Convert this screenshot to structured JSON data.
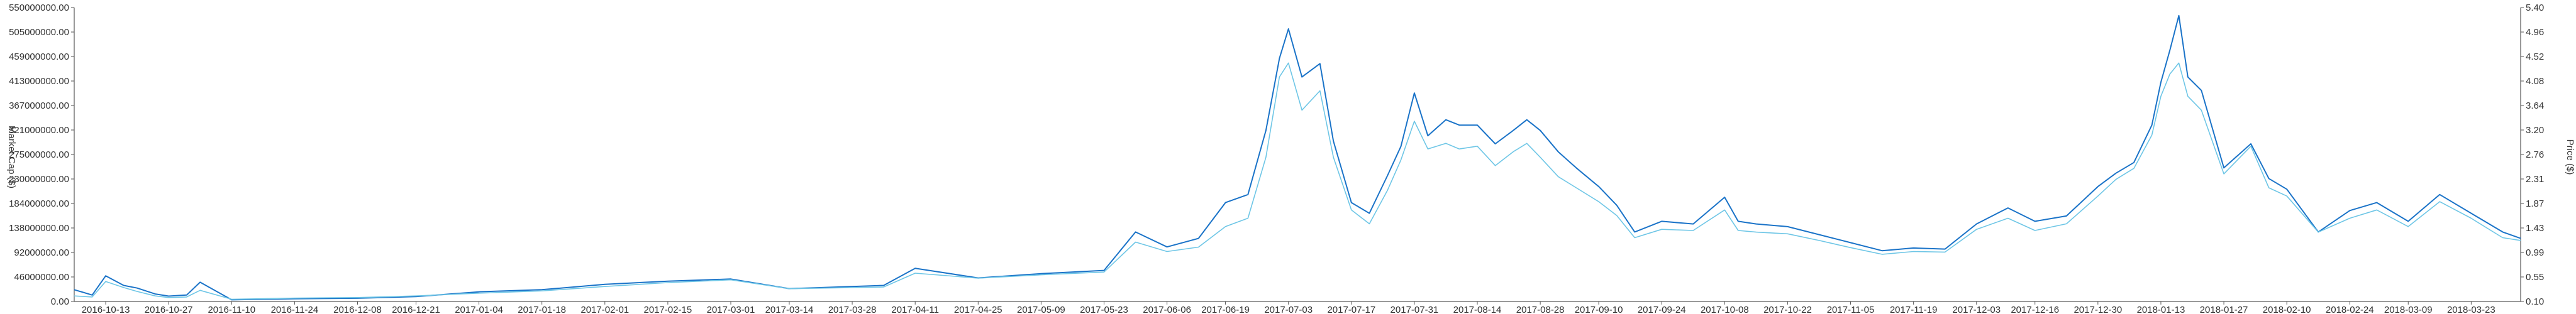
{
  "chart_data": {
    "type": "line",
    "xlabel": "",
    "ylabel_left": "Market Cap ($)",
    "ylabel_right": "Price ($)",
    "y_left_range": [
      0,
      550000000
    ],
    "y_right_range": [
      0.1,
      5.4
    ],
    "y_left_ticks": [
      "0.00",
      "46000000.00",
      "92000000.00",
      "138000000.00",
      "184000000.00",
      "230000000.00",
      "275000000.00",
      "321000000.00",
      "367000000.00",
      "413000000.00",
      "459000000.00",
      "505000000.00",
      "550000000.00"
    ],
    "y_right_ticks": [
      "0.10",
      "0.55",
      "0.99",
      "1.43",
      "1.87",
      "2.31",
      "2.76",
      "3.20",
      "3.64",
      "4.08",
      "4.52",
      "4.96",
      "5.40"
    ],
    "x_ticks": [
      "2016-10-13",
      "2016-10-27",
      "2016-11-10",
      "2016-11-24",
      "2016-12-08",
      "2016-12-21",
      "2017-01-04",
      "2017-01-18",
      "2017-02-01",
      "2017-02-15",
      "2017-03-01",
      "2017-03-14",
      "2017-03-28",
      "2017-04-11",
      "2017-04-25",
      "2017-05-09",
      "2017-05-23",
      "2017-06-06",
      "2017-06-19",
      "2017-07-03",
      "2017-07-17",
      "2017-07-31",
      "2017-08-14",
      "2017-08-28",
      "2017-09-10",
      "2017-09-24",
      "2017-10-08",
      "2017-10-22",
      "2017-11-05",
      "2017-11-19",
      "2017-12-03",
      "2017-12-16",
      "2017-12-30",
      "2018-01-13",
      "2018-01-27",
      "2018-02-10",
      "2018-02-24",
      "2018-03-09",
      "2018-03-23"
    ],
    "grid": false,
    "legend": "none",
    "x": [
      "2016-10-06",
      "2016-10-10",
      "2016-10-13",
      "2016-10-17",
      "2016-10-20",
      "2016-10-24",
      "2016-10-27",
      "2016-10-31",
      "2016-11-03",
      "2016-11-10",
      "2016-11-24",
      "2016-12-08",
      "2016-12-21",
      "2017-01-04",
      "2017-01-18",
      "2017-02-01",
      "2017-02-15",
      "2017-03-01",
      "2017-03-14",
      "2017-03-28",
      "2017-04-04",
      "2017-04-11",
      "2017-04-25",
      "2017-05-09",
      "2017-05-23",
      "2017-05-30",
      "2017-06-06",
      "2017-06-13",
      "2017-06-19",
      "2017-06-24",
      "2017-06-28",
      "2017-07-01",
      "2017-07-03",
      "2017-07-06",
      "2017-07-10",
      "2017-07-13",
      "2017-07-17",
      "2017-07-21",
      "2017-07-25",
      "2017-07-28",
      "2017-07-31",
      "2017-08-03",
      "2017-08-07",
      "2017-08-10",
      "2017-08-14",
      "2017-08-18",
      "2017-08-22",
      "2017-08-25",
      "2017-08-28",
      "2017-09-01",
      "2017-09-05",
      "2017-09-10",
      "2017-09-14",
      "2017-09-18",
      "2017-09-24",
      "2017-10-01",
      "2017-10-08",
      "2017-10-11",
      "2017-10-15",
      "2017-10-22",
      "2017-10-29",
      "2017-11-05",
      "2017-11-12",
      "2017-11-19",
      "2017-11-26",
      "2017-12-03",
      "2017-12-10",
      "2017-12-16",
      "2017-12-23",
      "2017-12-30",
      "2018-01-03",
      "2018-01-07",
      "2018-01-11",
      "2018-01-13",
      "2018-01-15",
      "2018-01-17",
      "2018-01-19",
      "2018-01-22",
      "2018-01-27",
      "2018-02-02",
      "2018-02-06",
      "2018-02-10",
      "2018-02-17",
      "2018-02-24",
      "2018-03-02",
      "2018-03-09",
      "2018-03-16",
      "2018-03-23",
      "2018-03-30",
      "2018-04-03"
    ],
    "series": [
      {
        "name": "",
        "axis": "left",
        "color": "#1a73c8",
        "values": [
          22000000,
          12000000,
          48000000,
          30000000,
          25000000,
          14000000,
          10000000,
          12000000,
          36000000,
          3000000,
          5000000,
          6000000,
          9000000,
          18000000,
          22000000,
          32000000,
          38000000,
          42000000,
          24000000,
          28000000,
          30000000,
          62000000,
          44000000,
          52000000,
          58000000,
          130000000,
          102000000,
          118000000,
          185000000,
          200000000,
          320000000,
          455000000,
          510000000,
          420000000,
          445000000,
          300000000,
          185000000,
          165000000,
          235000000,
          290000000,
          390000000,
          310000000,
          340000000,
          330000000,
          330000000,
          295000000,
          320000000,
          340000000,
          320000000,
          280000000,
          250000000,
          215000000,
          180000000,
          130000000,
          150000000,
          145000000,
          195000000,
          150000000,
          145000000,
          140000000,
          125000000,
          110000000,
          95000000,
          100000000,
          98000000,
          145000000,
          175000000,
          150000000,
          160000000,
          215000000,
          240000000,
          260000000,
          330000000,
          410000000,
          470000000,
          535000000,
          420000000,
          395000000,
          250000000,
          295000000,
          230000000,
          210000000,
          130000000,
          170000000,
          185000000,
          150000000,
          200000000,
          165000000,
          130000000,
          118000000
        ]
      },
      {
        "name": "",
        "axis": "right",
        "color": "#6ec6e6",
        "values": [
          0.2,
          0.18,
          0.46,
          0.35,
          0.28,
          0.2,
          0.17,
          0.18,
          0.3,
          0.14,
          0.16,
          0.17,
          0.2,
          0.25,
          0.29,
          0.37,
          0.44,
          0.49,
          0.33,
          0.35,
          0.36,
          0.61,
          0.52,
          0.58,
          0.63,
          1.17,
          1.0,
          1.08,
          1.45,
          1.6,
          2.7,
          4.15,
          4.4,
          3.55,
          3.9,
          2.7,
          1.75,
          1.5,
          2.1,
          2.65,
          3.35,
          2.85,
          2.95,
          2.85,
          2.9,
          2.55,
          2.8,
          2.95,
          2.7,
          2.35,
          2.15,
          1.9,
          1.65,
          1.25,
          1.4,
          1.38,
          1.75,
          1.38,
          1.35,
          1.32,
          1.2,
          1.07,
          0.95,
          1.0,
          0.99,
          1.4,
          1.6,
          1.38,
          1.5,
          2.0,
          2.3,
          2.5,
          3.1,
          3.8,
          4.2,
          4.4,
          3.8,
          3.55,
          2.4,
          2.9,
          2.15,
          2.0,
          1.35,
          1.6,
          1.75,
          1.45,
          1.9,
          1.6,
          1.25,
          1.2
        ]
      }
    ]
  }
}
